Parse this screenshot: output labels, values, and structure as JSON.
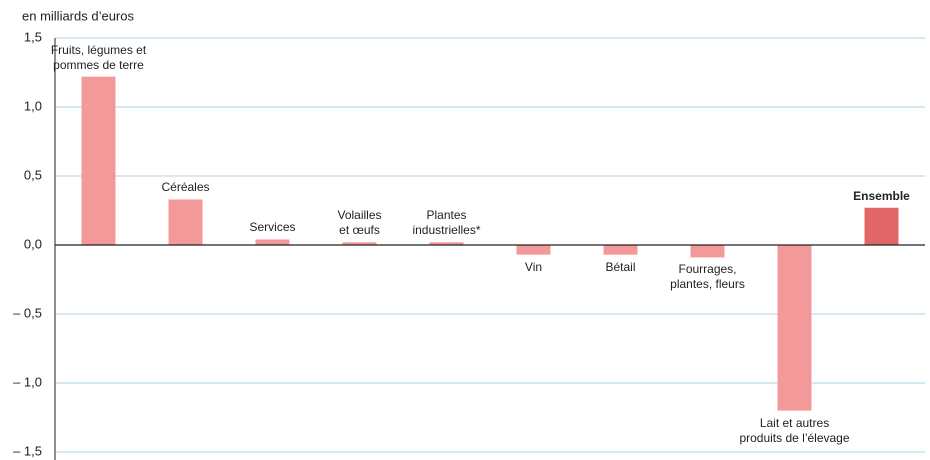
{
  "chart_data": {
    "type": "bar",
    "y_label": "en milliards d’euros",
    "categories": [
      "Fruits, légumes et\npommes de terre",
      "Céréales",
      "Services",
      "Volailles\net œufs",
      "Plantes\nindustrielles*",
      "Vin",
      "Bétail",
      "Fourrages,\nplantes, fleurs",
      "Lait et autres\nproduits de l’élevage",
      "Ensemble"
    ],
    "values": [
      1.22,
      0.33,
      0.04,
      0.02,
      0.02,
      -0.07,
      -0.07,
      -0.09,
      -1.2,
      0.27
    ],
    "color": "#f4999a",
    "colors": [
      "#f4999a",
      "#f4999a",
      "#f4999a",
      "#f4999a",
      "#f4999a",
      "#f4999a",
      "#f4999a",
      "#f4999a",
      "#f4999a",
      "#e06668"
    ],
    "ylim": [
      -1.5,
      1.5
    ],
    "yticks": [
      {
        "value": -1.5,
        "label": "– 1,5"
      },
      {
        "value": -1,
        "label": "– 1,0"
      },
      {
        "value": -0.5,
        "label": "– 0,5"
      },
      {
        "value": 0,
        "label": "0,0"
      },
      {
        "value": 0.5,
        "label": "0,5"
      },
      {
        "value": 1,
        "label": "1,0"
      },
      {
        "value": 1.5,
        "label": "1,5"
      }
    ],
    "grid": true
  }
}
